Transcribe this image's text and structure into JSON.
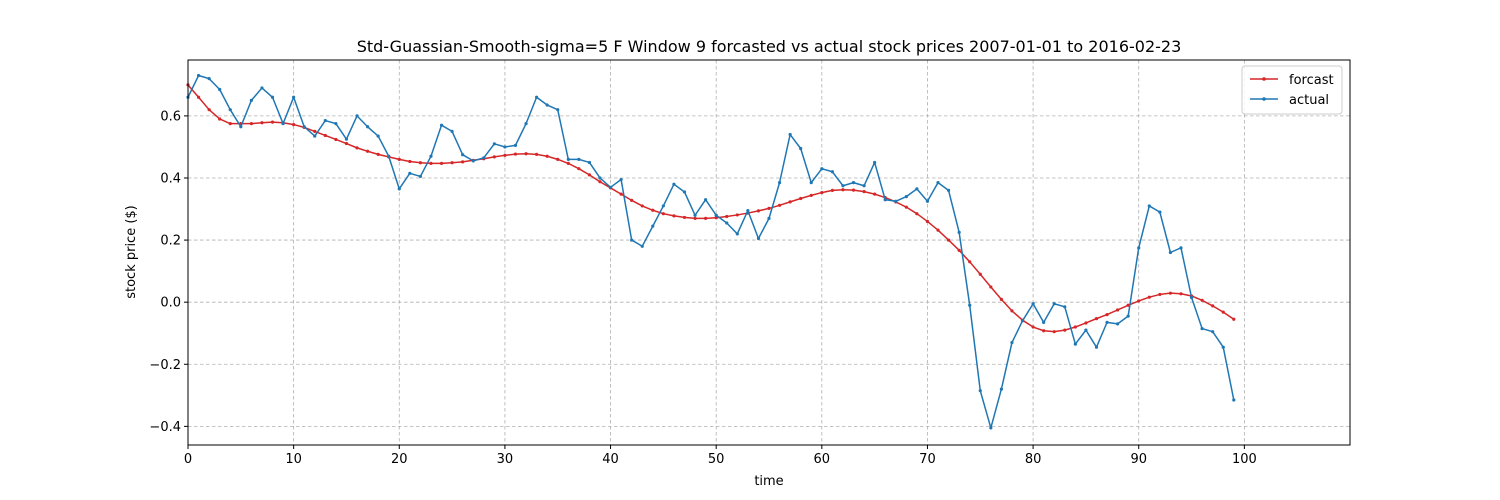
{
  "chart_data": {
    "type": "line",
    "title": "Std-Guassian-Smooth-sigma=5 F Window 9 forcasted vs actual stock prices 2007-01-01 to 2016-02-23",
    "xlabel": "time",
    "ylabel": "stock price ($)",
    "xlim": [
      0,
      110
    ],
    "ylim": [
      -0.46,
      0.78
    ],
    "xticks": [
      0,
      10,
      20,
      30,
      40,
      50,
      60,
      70,
      80,
      90,
      100
    ],
    "yticks": [
      -0.4,
      -0.2,
      0.0,
      0.2,
      0.4,
      0.6
    ],
    "ytick_labels": [
      "−0.4",
      "−0.2",
      "0.0",
      "0.2",
      "0.4",
      "0.6"
    ],
    "grid": true,
    "legend_position": "top-right",
    "series": [
      {
        "name": "forcast",
        "color": "#d62728",
        "values": [
          0.7,
          0.66,
          0.62,
          0.59,
          0.575,
          0.575,
          0.575,
          0.578,
          0.58,
          0.578,
          0.572,
          0.563,
          0.55,
          0.537,
          0.524,
          0.511,
          0.497,
          0.486,
          0.476,
          0.468,
          0.46,
          0.453,
          0.449,
          0.447,
          0.447,
          0.449,
          0.452,
          0.457,
          0.462,
          0.468,
          0.473,
          0.477,
          0.478,
          0.476,
          0.47,
          0.46,
          0.447,
          0.43,
          0.41,
          0.388,
          0.368,
          0.348,
          0.328,
          0.31,
          0.296,
          0.285,
          0.278,
          0.273,
          0.27,
          0.27,
          0.272,
          0.276,
          0.281,
          0.287,
          0.294,
          0.302,
          0.312,
          0.323,
          0.334,
          0.344,
          0.353,
          0.36,
          0.362,
          0.361,
          0.356,
          0.348,
          0.337,
          0.323,
          0.306,
          0.285,
          0.26,
          0.232,
          0.2,
          0.167,
          0.13,
          0.09,
          0.049,
          0.009,
          -0.028,
          -0.058,
          -0.08,
          -0.092,
          -0.095,
          -0.09,
          -0.08,
          -0.067,
          -0.053,
          -0.04,
          -0.025,
          -0.01,
          0.004,
          0.016,
          0.025,
          0.029,
          0.027,
          0.02,
          0.006,
          -0.012,
          -0.032,
          -0.055
        ]
      },
      {
        "name": "actual",
        "color": "#1f77b4",
        "values": [
          0.66,
          0.73,
          0.72,
          0.685,
          0.62,
          0.565,
          0.65,
          0.69,
          0.66,
          0.575,
          0.66,
          0.565,
          0.535,
          0.585,
          0.575,
          0.525,
          0.6,
          0.565,
          0.535,
          0.47,
          0.365,
          0.415,
          0.405,
          0.47,
          0.57,
          0.55,
          0.475,
          0.455,
          0.465,
          0.51,
          0.5,
          0.505,
          0.575,
          0.66,
          0.635,
          0.62,
          0.46,
          0.46,
          0.45,
          0.4,
          0.37,
          0.395,
          0.2,
          0.18,
          0.245,
          0.31,
          0.38,
          0.355,
          0.28,
          0.33,
          0.28,
          0.255,
          0.22,
          0.295,
          0.205,
          0.27,
          0.385,
          0.54,
          0.495,
          0.385,
          0.43,
          0.42,
          0.375,
          0.385,
          0.375,
          0.45,
          0.33,
          0.325,
          0.34,
          0.365,
          0.325,
          0.385,
          0.36,
          0.225,
          -0.01,
          -0.285,
          -0.405,
          -0.28,
          -0.13,
          -0.06,
          -0.005,
          -0.065,
          -0.005,
          -0.015,
          -0.135,
          -0.09,
          -0.145,
          -0.065,
          -0.07,
          -0.045,
          0.175,
          0.31,
          0.29,
          0.16,
          0.175,
          0.015,
          -0.085,
          -0.095,
          -0.145,
          -0.315
        ]
      }
    ]
  }
}
